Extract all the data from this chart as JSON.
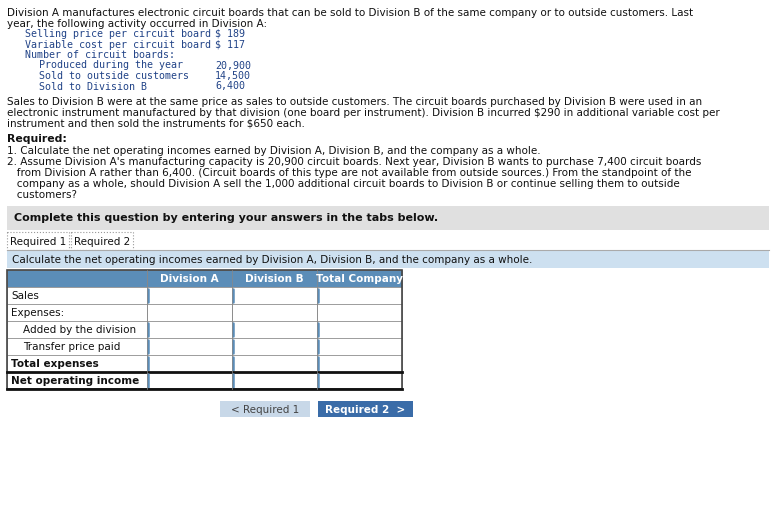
{
  "line1": "Division A manufactures electronic circuit boards that can be sold to Division B of the same company or to outside customers. Last",
  "line2": "year, the following activity occurred in Division A:",
  "data_items": [
    {
      "label": "Selling price per circuit board",
      "value": "$ 189",
      "indent": 1
    },
    {
      "label": "Variable cost per circuit board",
      "value": "$ 117",
      "indent": 1
    },
    {
      "label": "Number of circuit boards:",
      "value": "",
      "indent": 1
    },
    {
      "label": "Produced during the year",
      "value": "20,900",
      "indent": 2
    },
    {
      "label": "Sold to outside customers",
      "value": "14,500",
      "indent": 2
    },
    {
      "label": "Sold to Division B",
      "value": "6,400",
      "indent": 2
    }
  ],
  "para_lines": [
    "Sales to Division B were at the same price as sales to outside customers. The circuit boards purchased by Division B were used in an",
    "electronic instrument manufactured by that division (one board per instrument). Division B incurred $290 in additional variable cost per",
    "instrument and then sold the instruments for $650 each."
  ],
  "required_label": "Required:",
  "req1": "1. Calculate the net operating incomes earned by Division A, Division B, and the company as a whole.",
  "req2_lines": [
    "2. Assume Division A's manufacturing capacity is 20,900 circuit boards. Next year, Division B wants to purchase 7,400 circuit boards",
    "   from Division A rather than 6,400. (Circuit boards of this type are not available from outside sources.) From the standpoint of the",
    "   company as a whole, should Division A sell the 1,000 additional circuit boards to Division B or continue selling them to outside",
    "   customers?"
  ],
  "complete_text": "Complete this question by entering your answers in the tabs below.",
  "tab1": "Required 1",
  "tab2": "Required 2",
  "instruction_text": "Calculate the net operating incomes earned by Division A, Division B, and the company as a whole.",
  "col_headers": [
    "Division A",
    "Division B",
    "Total Company"
  ],
  "row_labels": [
    "Sales",
    "Expenses:",
    "  Added by the division",
    "  Transfer price paid",
    "Total expenses",
    "Net operating income"
  ],
  "btn1_text": "< Required 1",
  "btn2_text": "Required 2  >",
  "bg_color": "#ffffff",
  "gray_box_color": "#e0e0e0",
  "light_blue_bar_color": "#cde0f0",
  "table_header_color": "#5b8db8",
  "table_header_text": "#ffffff",
  "btn1_bg": "#c8d8e8",
  "btn2_bg": "#3a6ca8",
  "text_color": "#111111",
  "mono_label_color": "#cc3333",
  "tab_selected_bg": "#ffffff",
  "tab_unselected_bg": "#f0f0f0",
  "input_cell_bg": "#ffffff",
  "cell_blue_accent": "#5b8db8",
  "row_bg_even": "#f0f4f8",
  "row_bg_odd": "#ffffff"
}
